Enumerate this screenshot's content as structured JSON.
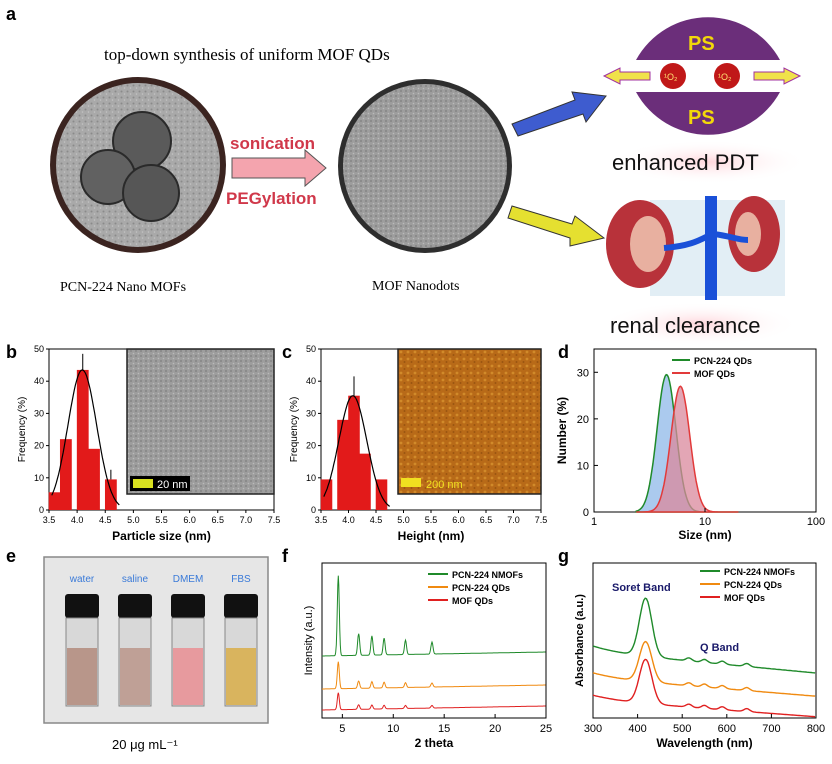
{
  "panel_a": {
    "label": "a",
    "header": "top-down synthesis of uniform MOF QDs",
    "left_caption": "PCN-224 Nano MOFs",
    "middle_caption": "MOF Nanodots",
    "arrow_label_top": "sonication",
    "arrow_label_bottom": "PEGylation",
    "ps_top": "PS",
    "ps_bottom": "PS",
    "singlet_oxygen": "¹O₂",
    "pdt_label": "enhanced PDT",
    "renal_label": "renal clearance"
  },
  "panel_b": {
    "label": "b",
    "scale_bar": "20 nm"
  },
  "panel_c": {
    "label": "c",
    "scale_bar": "200 nm"
  },
  "panel_e": {
    "label": "e",
    "vials": [
      "water",
      "saline",
      "DMEM",
      "FBS"
    ],
    "caption": "20 μg mL⁻¹",
    "colors": {
      "water": "#b8968a",
      "saline": "#bfa096",
      "DMEM": "#e79a9e",
      "FBS": "#d9b45e"
    }
  },
  "chart_data": [
    {
      "panel": "b",
      "type": "bar",
      "x": [
        3.6,
        3.8,
        4.1,
        4.3,
        4.6
      ],
      "values": [
        5.5,
        22,
        43.5,
        19,
        9.5
      ],
      "errors": [
        0,
        0,
        5,
        0,
        3
      ],
      "fit": "gaussian",
      "xlabel": "Particle size (nm)",
      "ylabel": "Frequency (%)",
      "xlim": [
        3.5,
        7.5
      ],
      "ylim": [
        0,
        50
      ],
      "xticks": [
        "3.5",
        "4.0",
        "4.5",
        "5.0",
        "5.5",
        "6.0",
        "6.5",
        "7.0",
        "7.5"
      ],
      "yticks": [
        "0",
        "10",
        "20",
        "30",
        "40",
        "50"
      ]
    },
    {
      "panel": "c",
      "type": "bar",
      "x": [
        3.6,
        3.9,
        4.1,
        4.3,
        4.6
      ],
      "values": [
        9.5,
        28,
        35.5,
        17.5,
        9.5
      ],
      "errors": [
        0,
        0,
        6,
        0,
        0
      ],
      "fit": "gaussian",
      "xlabel": "Height (nm)",
      "ylabel": "Frequency (%)",
      "xlim": [
        3.5,
        7.5
      ],
      "ylim": [
        0,
        50
      ],
      "xticks": [
        "3.5",
        "4.0",
        "4.5",
        "5.0",
        "5.5",
        "6.0",
        "6.5",
        "7.0",
        "7.5"
      ],
      "yticks": [
        "0",
        "10",
        "20",
        "30",
        "40",
        "50"
      ]
    },
    {
      "panel": "d",
      "type": "area",
      "xscale": "log",
      "xlabel": "Size (nm)",
      "ylabel": "Number (%)",
      "xlim": [
        1,
        100
      ],
      "ylim": [
        0,
        35
      ],
      "xticks": [
        "1",
        "10",
        "100"
      ],
      "yticks": [
        "0",
        "10",
        "20",
        "30"
      ],
      "series": [
        {
          "name": "PCN-224 QDs",
          "color": "#1f8a2a",
          "fill": "#8fb8e8",
          "peak_x": 4.5,
          "peak_y": 29.5
        },
        {
          "name": "MOF QDs",
          "color": "#e23a3a",
          "fill": "#d9889c",
          "peak_x": 6.0,
          "peak_y": 27
        }
      ]
    },
    {
      "panel": "f",
      "type": "line",
      "xlabel": "2 theta",
      "ylabel": "Intensity (a.u.)",
      "xlim": [
        3,
        25
      ],
      "xticks": [
        "5",
        "10",
        "15",
        "20",
        "25"
      ],
      "peaks": [
        4.6,
        6.6,
        7.9,
        9.1,
        11.2,
        13.8
      ],
      "series": [
        {
          "name": "PCN-224 NMOFs",
          "color": "#1f8a2a"
        },
        {
          "name": "PCN-224 QDs",
          "color": "#f08a10"
        },
        {
          "name": "MOF QDs",
          "color": "#e02020"
        }
      ]
    },
    {
      "panel": "g",
      "type": "line",
      "xlabel": "Wavelength (nm)",
      "ylabel": "Absorbance (a.u.)",
      "xlim": [
        300,
        800
      ],
      "xticks": [
        "300",
        "400",
        "500",
        "600",
        "700",
        "800"
      ],
      "annotations": [
        "Soret Band",
        "Q Band"
      ],
      "series": [
        {
          "name": "PCN-224 NMOFs",
          "color": "#1f8a2a"
        },
        {
          "name": "PCN-224 QDs",
          "color": "#f08a10"
        },
        {
          "name": "MOF QDs",
          "color": "#e02020"
        }
      ]
    }
  ]
}
